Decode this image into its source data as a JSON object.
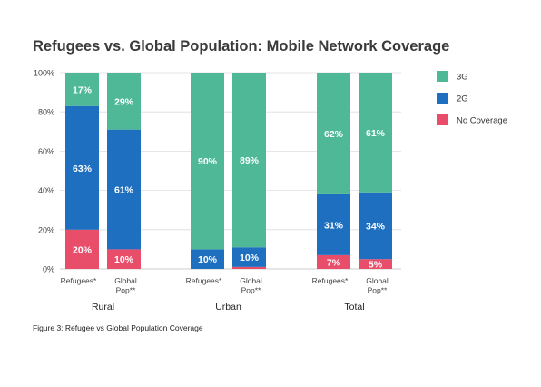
{
  "chart_data": {
    "type": "bar",
    "stacked": true,
    "title": "Refugees vs. Global Population: Mobile Network Coverage",
    "ylim": [
      0,
      100
    ],
    "y_ticks": [
      "0%",
      "20%",
      "40%",
      "60%",
      "80%",
      "100%"
    ],
    "groups": [
      "Rural",
      "Urban",
      "Total"
    ],
    "categories": [
      {
        "group": "Rural",
        "label": [
          "Refugees*"
        ]
      },
      {
        "group": "Rural",
        "label": [
          "Global",
          "Pop**"
        ]
      },
      {
        "group": "Urban",
        "label": [
          "Refugees*"
        ]
      },
      {
        "group": "Urban",
        "label": [
          "Global",
          "Pop**"
        ]
      },
      {
        "group": "Total",
        "label": [
          "Refugees*"
        ]
      },
      {
        "group": "Total",
        "label": [
          "Global",
          "Pop**"
        ]
      }
    ],
    "series": [
      {
        "name": "No Coverage",
        "color": "#e84d6a",
        "values": [
          20,
          10,
          0,
          1,
          7,
          5
        ],
        "labels": [
          "20%",
          "10%",
          "",
          "",
          "7%",
          "5%"
        ]
      },
      {
        "name": "2G",
        "color": "#1e6fc0",
        "values": [
          63,
          61,
          10,
          10,
          31,
          34
        ],
        "labels": [
          "63%",
          "61%",
          "10%",
          "10%",
          "31%",
          "34%"
        ]
      },
      {
        "name": "3G",
        "color": "#4fb896",
        "values": [
          17,
          29,
          90,
          89,
          62,
          61
        ],
        "labels": [
          "17%",
          "29%",
          "90%",
          "89%",
          "62%",
          "61%"
        ]
      }
    ],
    "legend": {
      "position": "right",
      "order": [
        "3G",
        "2G",
        "No Coverage"
      ]
    },
    "grid": true
  },
  "caption": "Figure 3: Refugee vs Global Population Coverage"
}
